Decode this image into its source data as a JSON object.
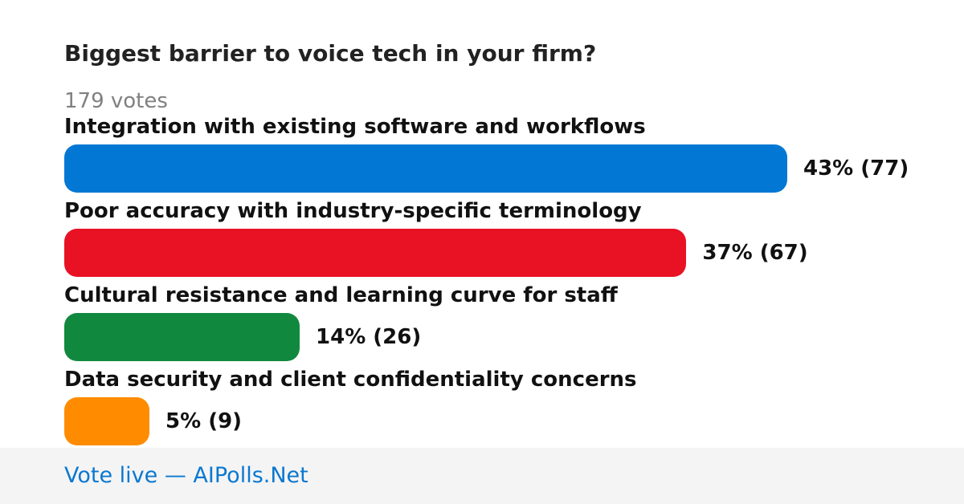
{
  "chart_data": {
    "type": "bar",
    "orientation": "horizontal",
    "title": "Biggest barrier to voice tech in your firm?",
    "total_votes_label": "179 votes",
    "max_percent": 43,
    "options": [
      {
        "label": "Integration with existing software and workflows",
        "percent": 43,
        "votes": 77,
        "value_label": "43% (77)",
        "color": "#0277d4"
      },
      {
        "label": "Poor accuracy with industry-specific terminology",
        "percent": 37,
        "votes": 67,
        "value_label": "37% (67)",
        "color": "#e81224"
      },
      {
        "label": "Cultural resistance and learning curve for staff",
        "percent": 14,
        "votes": 26,
        "value_label": "14% (26)",
        "color": "#10893e"
      },
      {
        "label": "Data security and client confidentiality concerns",
        "percent": 5,
        "votes": 9,
        "value_label": "5% (9)",
        "color": "#ff8c00"
      }
    ]
  },
  "footer": {
    "text": "Vote live — AIPolls.Net"
  }
}
